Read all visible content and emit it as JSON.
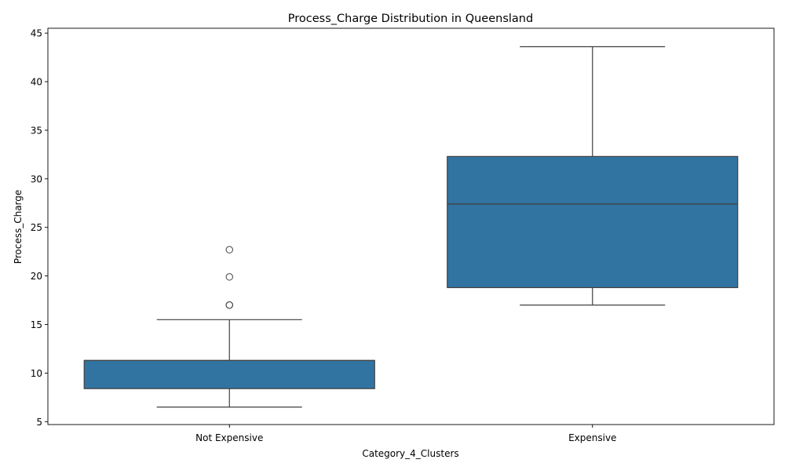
{
  "chart_data": {
    "type": "box",
    "title": "Process_Charge Distribution in Queensland",
    "xlabel": "Category_4_Clusters",
    "ylabel": "Process_Charge",
    "ylim": [
      4.7,
      45.5
    ],
    "yticks": [
      5,
      10,
      15,
      20,
      25,
      30,
      35,
      40,
      45
    ],
    "grid": false,
    "box_color": "#3274a1",
    "line_color": "#3f3f3f",
    "categories": [
      "Not Expensive",
      "Expensive"
    ],
    "boxes": [
      {
        "category": "Not Expensive",
        "whisker_low": 6.5,
        "q1": 8.4,
        "median": 11.3,
        "q3": 11.3,
        "whisker_high": 15.5,
        "outliers": [
          17.0,
          17.0,
          19.9,
          22.7
        ]
      },
      {
        "category": "Expensive",
        "whisker_low": 17.0,
        "q1": 18.8,
        "median": 27.4,
        "q3": 32.3,
        "whisker_high": 43.6,
        "outliers": []
      }
    ]
  }
}
